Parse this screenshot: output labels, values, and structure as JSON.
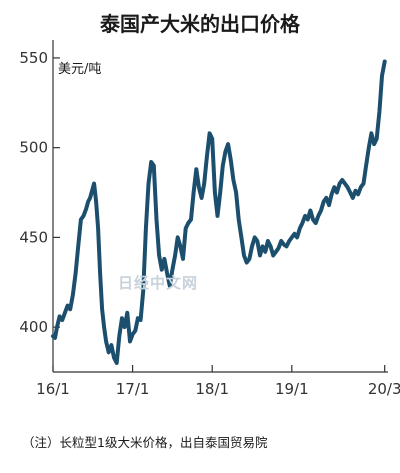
{
  "title": "泰国产大米的出口价格",
  "unit_label": "美元/吨",
  "footnote": "（注）长粒型1级大米价格，出自泰国贸易院",
  "watermark": "日经中文网",
  "line_color": "#1c4f6e",
  "chart_data": {
    "type": "line",
    "title": "泰国产大米的出口价格",
    "ylabel": "美元/吨",
    "xlabel": "",
    "ylim": [
      375,
      560
    ],
    "yticks": [
      400,
      450,
      500,
      550
    ],
    "xlim": [
      0,
      50.5
    ],
    "xticks": [
      {
        "label": "16/1",
        "x": 0
      },
      {
        "label": "17/1",
        "x": 12
      },
      {
        "label": "18/1",
        "x": 24
      },
      {
        "label": "19/1",
        "x": 36
      },
      {
        "label": "20/3",
        "x": 50
      }
    ],
    "grid": false,
    "series": [
      {
        "name": "",
        "x": [
          0,
          0.3,
          0.6,
          1.0,
          1.4,
          1.8,
          2.2,
          2.6,
          3.0,
          3.4,
          3.8,
          4.2,
          4.6,
          5.0,
          5.3,
          5.6,
          5.9,
          6.2,
          6.5,
          6.8,
          7.1,
          7.4,
          7.7,
          8.0,
          8.4,
          8.8,
          9.2,
          9.6,
          10.0,
          10.4,
          10.8,
          11.2,
          11.6,
          12.0,
          12.4,
          12.8,
          13.2,
          13.6,
          14.0,
          14.4,
          14.8,
          15.2,
          15.6,
          16.0,
          16.4,
          16.8,
          17.2,
          17.6,
          18.0,
          18.4,
          18.8,
          19.2,
          19.6,
          20.0,
          20.4,
          20.8,
          21.2,
          21.6,
          22.0,
          22.4,
          22.8,
          23.2,
          23.6,
          24.0,
          24.4,
          24.8,
          25.2,
          25.6,
          26.0,
          26.4,
          26.8,
          27.2,
          27.6,
          28.0,
          28.4,
          28.8,
          29.2,
          29.6,
          30.0,
          30.4,
          30.8,
          31.2,
          31.6,
          32.0,
          32.4,
          32.8,
          33.2,
          33.6,
          34.0,
          34.4,
          34.8,
          35.2,
          35.6,
          36.0,
          36.4,
          36.8,
          37.2,
          37.6,
          38.0,
          38.4,
          38.8,
          39.2,
          39.6,
          40.0,
          40.4,
          40.8,
          41.2,
          41.6,
          42.0,
          42.4,
          42.8,
          43.2,
          43.6,
          44.0,
          44.4,
          44.8,
          45.2,
          45.6,
          46.0,
          46.4,
          46.8,
          47.2,
          47.6,
          48.0,
          48.4,
          48.8,
          49.2,
          49.6,
          50.0
        ],
        "values": [
          395,
          394,
          400,
          406,
          404,
          408,
          412,
          410,
          418,
          430,
          445,
          460,
          462,
          466,
          470,
          472,
          476,
          480,
          470,
          455,
          430,
          410,
          400,
          392,
          386,
          390,
          383,
          380,
          395,
          405,
          400,
          408,
          392,
          396,
          398,
          405,
          404,
          420,
          455,
          480,
          492,
          490,
          460,
          440,
          432,
          438,
          430,
          423,
          432,
          440,
          450,
          445,
          438,
          455,
          458,
          460,
          475,
          488,
          478,
          472,
          480,
          495,
          508,
          505,
          475,
          462,
          475,
          490,
          498,
          502,
          493,
          482,
          475,
          460,
          450,
          440,
          436,
          438,
          445,
          450,
          448,
          440,
          445,
          442,
          448,
          445,
          440,
          442,
          444,
          448,
          446,
          445,
          448,
          450,
          452,
          450,
          455,
          458,
          462,
          460,
          465,
          460,
          458,
          462,
          465,
          470,
          472,
          468,
          474,
          478,
          475,
          480,
          482,
          480,
          478,
          475,
          472,
          476,
          474,
          478,
          480,
          490,
          500,
          508,
          502,
          505,
          520,
          540,
          548
        ]
      }
    ]
  }
}
